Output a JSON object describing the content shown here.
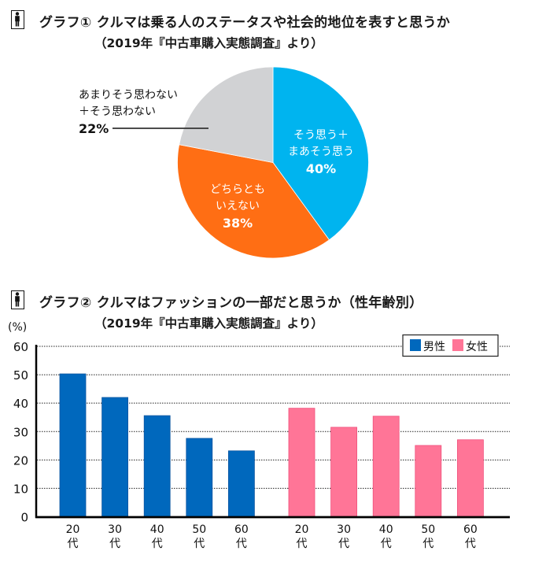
{
  "chart_data": [
    {
      "type": "pie",
      "icon": "person-icon",
      "title": "グラフ① クルマは乗る人のステータスや社会的地位を表すと思うか",
      "subtitle": "（2019年『中古車購入実態調査』より）",
      "slices": [
        {
          "label_lines": [
            "そう思う＋",
            "まあそう思う"
          ],
          "value": 40,
          "value_label": "40%",
          "color": "#00b4ef"
        },
        {
          "label_lines": [
            "どちらとも",
            "いえない"
          ],
          "value": 38,
          "value_label": "38%",
          "color": "#ff6e14"
        },
        {
          "label_lines": [
            "あまりそう思わない",
            "＋そう思わない"
          ],
          "value": 22,
          "value_label": "22%",
          "color": "#d1d2d4"
        }
      ]
    },
    {
      "type": "bar",
      "icon": "person-icon",
      "title": "グラフ② クルマはファッションの一部だと思うか（性年齢別）",
      "subtitle": "（2019年『中古車購入実態調査』より）",
      "ylabel": "(%)",
      "ylim": [
        0,
        60
      ],
      "yticks": [
        "0",
        "10",
        "20",
        "30",
        "40",
        "50",
        "60"
      ],
      "grid": true,
      "legend_position": "top-right",
      "categories": [
        {
          "num": "20",
          "suffix": "代"
        },
        {
          "num": "30",
          "suffix": "代"
        },
        {
          "num": "40",
          "suffix": "代"
        },
        {
          "num": "50",
          "suffix": "代"
        },
        {
          "num": "60",
          "suffix": "代"
        }
      ],
      "series": [
        {
          "name": "男性",
          "color": "#0068bd",
          "values": [
            50.3,
            42.0,
            35.6,
            27.6,
            23.2
          ]
        },
        {
          "name": "女性",
          "color": "#ff7597",
          "values": [
            38.2,
            31.5,
            35.4,
            25.1,
            27.1
          ]
        }
      ]
    }
  ]
}
